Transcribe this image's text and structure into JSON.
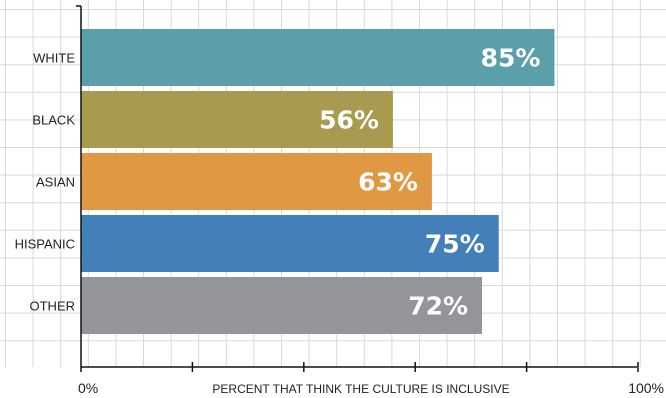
{
  "chart_data": {
    "type": "bar",
    "orientation": "horizontal",
    "categories": [
      "WHITE",
      "BLACK",
      "ASIAN",
      "HISPANIC",
      "OTHER"
    ],
    "values": [
      85,
      56,
      63,
      75,
      72
    ],
    "value_labels": [
      "85%",
      "56%",
      "63%",
      "75%",
      "72%"
    ],
    "colors": [
      "#5b9faa",
      "#a89a4e",
      "#e19842",
      "#4380b9",
      "#939598"
    ],
    "xlabel": "PERCENT THAT THINK THE CULTURE IS INCLUSIVE",
    "xlim": [
      0,
      100
    ],
    "x_tick_labels": {
      "min": "0%",
      "max": "100%"
    },
    "grid": true
  }
}
